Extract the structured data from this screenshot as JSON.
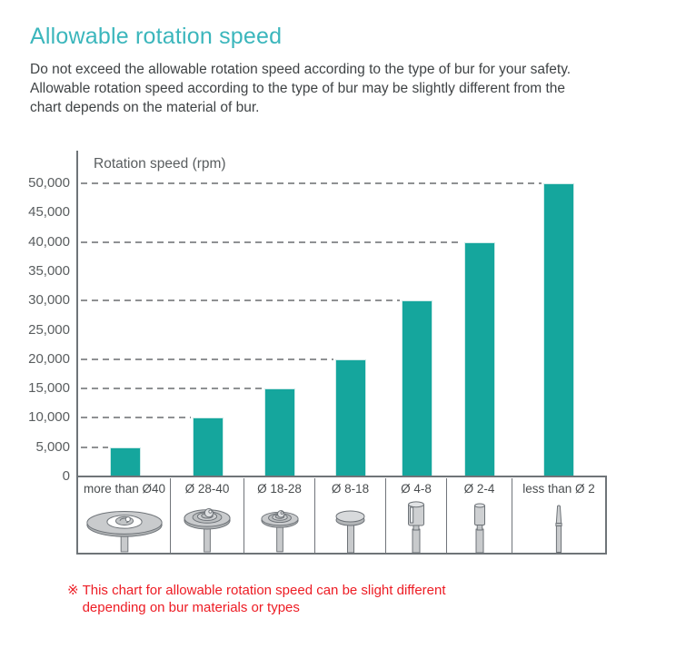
{
  "header": {
    "title": "Allowable rotation speed",
    "description_lines": [
      "Do not exceed the allowable rotation speed according to the type of bur for your safety.",
      "Allowable rotation speed according to the type of bur may be slightly different from the",
      "chart depends on the material of bur."
    ]
  },
  "chart_data": {
    "type": "bar",
    "axis_title": "Rotation speed (rpm)",
    "categories": [
      "more than Ø40",
      "Ø 28-40",
      "Ø 18-28",
      "Ø 8-18",
      "Ø 4-8",
      "Ø 2-4",
      "less than Ø 2"
    ],
    "values": [
      5000,
      10000,
      15000,
      20000,
      30000,
      40000,
      50000
    ],
    "ytick_labels": [
      "50,000",
      "45,000",
      "40,000",
      "35,000",
      "30,000",
      "25,000",
      "20,000",
      "15,000",
      "10,000",
      "5,000",
      "0"
    ],
    "ytick_interval": 5000,
    "ylim": [
      0,
      50000
    ],
    "bar_color": "#15a69d",
    "gridline_style": "dashed, drawn from y-axis to each bar at that bar's value",
    "legend": "none",
    "category_icons": [
      "large-disc-bur",
      "medium-disc-bur",
      "small-disc-bur",
      "button-disc-bur",
      "cylinder-bur",
      "small-cylinder-bur",
      "needle-bur"
    ]
  },
  "footnote": {
    "symbol": "※",
    "lines": [
      "This chart for allowable rotation speed can be slight different",
      "depending on bur materials or types"
    ]
  },
  "colors": {
    "title": "#3bb6bc",
    "bar": "#15a69d",
    "note_red": "#ed1c24",
    "axis_gray": "#6f7478"
  }
}
